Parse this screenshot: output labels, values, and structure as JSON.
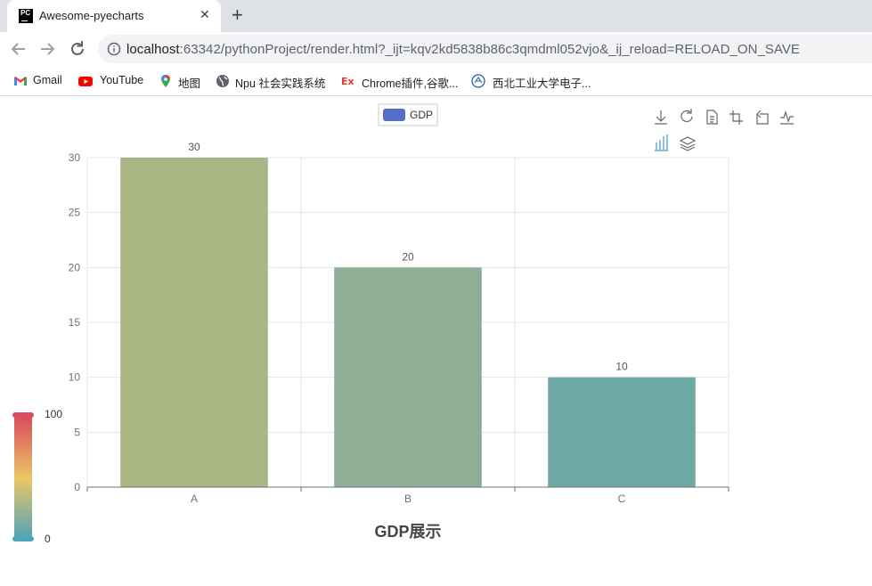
{
  "browser": {
    "tab": {
      "title": "Awesome-pyecharts",
      "favicon_text": "PC",
      "close_icon": "close-icon"
    },
    "new_tab_icon": "plus-icon",
    "nav": {
      "back_icon": "arrow-left-icon",
      "forward_icon": "arrow-right-icon",
      "reload_icon": "reload-icon"
    },
    "url": {
      "host": "localhost",
      "rest": ":63342/pythonProject/render.html?_ijt=kqv2kd5838b86c3qmdml052vjo&_ij_reload=RELOAD_ON_SAVE"
    },
    "bookmarks": [
      {
        "label": "Gmail",
        "icon": "gmail-icon"
      },
      {
        "label": "YouTube",
        "icon": "youtube-icon"
      },
      {
        "label": "地图",
        "icon": "maps-pin-icon"
      },
      {
        "label": "Npu 社会实践系统",
        "icon": "globe-icon"
      },
      {
        "label": "Chrome插件,谷歌...",
        "icon": "ex-icon"
      },
      {
        "label": "西北工业大学电子...",
        "icon": "university-seal-icon"
      }
    ]
  },
  "toolbox_icons": [
    "download-icon",
    "refresh-icon",
    "data-view-icon",
    "zoom-icon",
    "zoom-reset-icon",
    "line-chart-icon",
    "bar-chart-icon",
    "stack-icon"
  ],
  "colors": {
    "bars": [
      "#abb685",
      "#8eae96",
      "#6ea8a5"
    ],
    "legend": "#5470c6",
    "visual_map": [
      "#d94e5d",
      "#eac763",
      "#50a3ba"
    ],
    "toolbox_active": "#3e98c5"
  },
  "chart_data": {
    "type": "bar",
    "title": "GDP展示",
    "categories": [
      "A",
      "B",
      "C"
    ],
    "series": [
      {
        "name": "GDP",
        "values": [
          30,
          20,
          10
        ]
      }
    ],
    "ylim": [
      0,
      30
    ],
    "yticks": [
      0,
      5,
      10,
      15,
      20,
      25,
      30
    ],
    "grid": true,
    "legend_position": "top-center",
    "visual_map": {
      "min": 0,
      "max": 100,
      "min_label": "0",
      "max_label": "100",
      "position": "bottom-left"
    }
  }
}
